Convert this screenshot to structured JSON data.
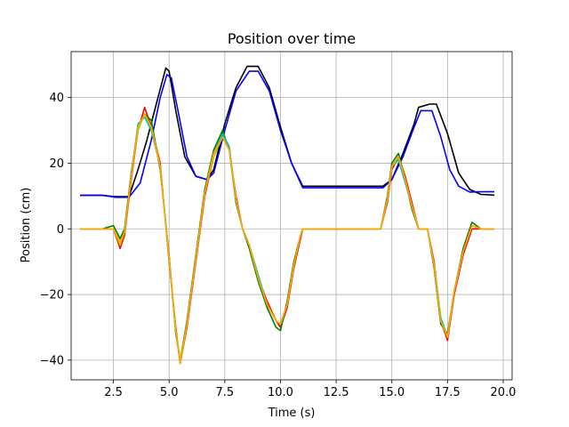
{
  "chart_data": {
    "type": "line",
    "title": "Position over time",
    "xlabel": "Time (s)",
    "ylabel": "Position (cm)",
    "xlim": [
      0.6,
      20.4
    ],
    "ylim": [
      -46,
      54
    ],
    "xticks": [
      2.5,
      5.0,
      7.5,
      10.0,
      12.5,
      15.0,
      17.5,
      20.0
    ],
    "xtick_labels": [
      "2.5",
      "5.0",
      "7.5",
      "10.0",
      "12.5",
      "15.0",
      "17.5",
      "20.0"
    ],
    "yticks": [
      -40,
      -20,
      0,
      20,
      40
    ],
    "ytick_labels": [
      "−40",
      "−20",
      "0",
      "20",
      "40"
    ],
    "grid": true,
    "colors": {
      "black": "#000000",
      "blue": "#0000ff",
      "red": "#ff0000",
      "green": "#008000",
      "cyan": "#00bfbf",
      "yellow": "#bfbf00",
      "orange": "#ffa500"
    },
    "series": [
      {
        "color": "#000000",
        "x": [
          1.0,
          2.0,
          2.6,
          3.2,
          3.6,
          4.0,
          4.5,
          4.85,
          5.0,
          5.3,
          5.7,
          6.2,
          6.7,
          7.0,
          7.5,
          8.0,
          8.5,
          9.0,
          9.5,
          10.0,
          10.5,
          11.0,
          12.0,
          13.0,
          14.0,
          14.6,
          15.0,
          15.5,
          16.0,
          16.2,
          16.7,
          17.0,
          17.5,
          18.0,
          18.5,
          19.0,
          19.6
        ],
        "y": [
          10.2,
          10.2,
          9.8,
          9.8,
          18,
          27,
          40,
          49,
          48,
          36,
          22,
          16,
          15,
          18,
          32,
          43,
          49.5,
          49.5,
          43,
          31,
          20,
          13,
          13,
          13,
          13,
          13,
          15,
          23,
          32,
          37,
          38,
          38,
          29,
          17,
          12,
          10.5,
          10.3
        ]
      },
      {
        "color": "#0000ff",
        "x": [
          1.0,
          2.0,
          2.6,
          3.2,
          3.7,
          4.2,
          4.6,
          4.9,
          5.1,
          5.4,
          5.8,
          6.2,
          6.7,
          7.0,
          7.5,
          8.0,
          8.6,
          9.0,
          9.5,
          10.0,
          10.5,
          11.0,
          12.0,
          13.0,
          14.0,
          14.6,
          15.0,
          15.5,
          16.0,
          16.3,
          16.8,
          17.2,
          17.6,
          18.0,
          18.5,
          19.0,
          19.6
        ],
        "y": [
          10.2,
          10.2,
          9.6,
          9.6,
          14,
          27,
          40,
          47,
          46,
          36,
          22,
          16,
          15,
          17,
          30,
          42,
          48,
          48,
          42,
          30,
          20,
          12.5,
          12.5,
          12.5,
          12.5,
          12.5,
          15,
          22,
          31,
          36,
          36,
          28,
          18,
          13,
          11.2,
          11.3,
          11.3
        ]
      },
      {
        "color": "#ff0000",
        "x": [
          1.0,
          2.0,
          2.5,
          2.8,
          3.0,
          3.3,
          3.6,
          3.9,
          4.2,
          4.6,
          5.0,
          5.3,
          5.5,
          5.8,
          6.2,
          6.6,
          7.0,
          7.4,
          7.7,
          8.0,
          8.3,
          8.6,
          9.0,
          9.4,
          9.8,
          10.0,
          10.3,
          10.6,
          10.9,
          11.0,
          12.0,
          13.0,
          14.0,
          14.5,
          14.8,
          15.0,
          15.3,
          15.6,
          15.9,
          16.2,
          16.6,
          16.9,
          17.2,
          17.5,
          17.8,
          18.2,
          18.6,
          19.0,
          19.6
        ],
        "y": [
          0,
          0,
          0,
          -6,
          -2,
          15,
          30,
          37,
          31,
          20,
          -10,
          -30,
          -41,
          -30,
          -10,
          10,
          22,
          28,
          24,
          10,
          0,
          -5,
          -15,
          -22,
          -28,
          -30,
          -24,
          -12,
          -3,
          0,
          0,
          0,
          0,
          0,
          8,
          18,
          22,
          16,
          8,
          0,
          0,
          -10,
          -28,
          -34,
          -20,
          -8,
          0,
          0,
          0
        ]
      },
      {
        "color": "#008000",
        "x": [
          1.0,
          2.0,
          2.5,
          2.8,
          3.0,
          3.3,
          3.6,
          3.9,
          4.2,
          4.6,
          5.0,
          5.3,
          5.5,
          5.8,
          6.2,
          6.6,
          7.0,
          7.4,
          7.7,
          8.0,
          8.3,
          8.6,
          9.0,
          9.4,
          9.8,
          10.0,
          10.3,
          10.6,
          10.9,
          11.0,
          12.0,
          13.0,
          14.0,
          14.5,
          14.8,
          15.0,
          15.3,
          15.6,
          15.9,
          16.2,
          16.6,
          16.9,
          17.2,
          17.5,
          17.8,
          18.2,
          18.6,
          19.0,
          19.6
        ],
        "y": [
          0,
          0,
          1,
          -3,
          0,
          17,
          31,
          35,
          33,
          18,
          -8,
          -32,
          -40,
          -28,
          -8,
          12,
          24,
          30,
          24,
          8,
          0,
          -6,
          -16,
          -24,
          -30,
          -31,
          -22,
          -10,
          -2,
          0,
          0,
          0,
          0,
          0,
          10,
          20,
          23,
          15,
          6,
          0,
          0,
          -12,
          -29,
          -32,
          -19,
          -6,
          2,
          0,
          0
        ]
      },
      {
        "color": "#00bfbf",
        "x": [
          1.0,
          2.0,
          2.5,
          2.8,
          3.0,
          3.3,
          3.6,
          3.9,
          4.2,
          4.6,
          5.0,
          5.3,
          5.5,
          5.8,
          6.2,
          6.6,
          7.0,
          7.4,
          7.7,
          8.0,
          8.3,
          8.6,
          9.0,
          9.4,
          9.8,
          10.0,
          10.3,
          10.6,
          10.9,
          11.0,
          12.0,
          13.0,
          14.0,
          14.5,
          14.8,
          15.0,
          15.3,
          15.6,
          15.9,
          16.2,
          16.6,
          16.9,
          17.2,
          17.5,
          17.8,
          18.2,
          18.6,
          19.0,
          19.6
        ],
        "y": [
          0,
          0,
          0,
          -4,
          -1,
          16,
          32,
          34,
          30,
          19,
          -9,
          -31,
          -41,
          -29,
          -9,
          11,
          23,
          29,
          25,
          9,
          0,
          -5,
          -14,
          -23,
          -28,
          -29,
          -23,
          -11,
          -2,
          0,
          0,
          0,
          0,
          0,
          9,
          19,
          21,
          14,
          7,
          0,
          0,
          -11,
          -27,
          -33,
          -19,
          -7,
          1,
          0,
          0
        ]
      },
      {
        "color": "#bfbf00",
        "x": [
          1.0,
          2.0,
          2.5,
          2.8,
          3.0,
          3.3,
          3.6,
          3.9,
          4.2,
          4.6,
          5.0,
          5.3,
          5.5,
          5.8,
          6.2,
          6.6,
          7.0,
          7.4,
          7.7,
          8.0,
          8.3,
          8.6,
          9.0,
          9.4,
          9.8,
          10.0,
          10.3,
          10.6,
          10.9,
          11.0,
          12.0,
          13.0,
          14.0,
          14.5,
          14.8,
          15.0,
          15.3,
          15.6,
          15.9,
          16.2,
          16.6,
          16.9,
          17.2,
          17.5,
          17.8,
          18.2,
          18.6,
          19.0,
          19.6
        ],
        "y": [
          0,
          0,
          0,
          -5,
          -1,
          16,
          30,
          35,
          31,
          19,
          -9,
          -31,
          -40,
          -29,
          -9,
          11,
          22,
          28,
          24,
          9,
          0,
          -5,
          -15,
          -23,
          -28,
          -29,
          -23,
          -11,
          -2,
          0,
          0,
          0,
          0,
          0,
          9,
          19,
          22,
          15,
          7,
          0,
          0,
          -11,
          -28,
          -33,
          -19,
          -7,
          1,
          0,
          0
        ]
      },
      {
        "color": "#ffa500",
        "x": [
          1.0,
          2.0,
          2.5,
          2.8,
          3.0,
          3.3,
          3.6,
          3.9,
          4.2,
          4.6,
          5.0,
          5.3,
          5.5,
          5.8,
          6.2,
          6.6,
          7.0,
          7.4,
          7.7,
          8.0,
          8.3,
          8.6,
          9.0,
          9.4,
          9.8,
          10.0,
          10.3,
          10.6,
          10.9,
          11.0,
          12.0,
          13.0,
          14.0,
          14.5,
          14.8,
          15.0,
          15.3,
          15.6,
          15.9,
          16.2,
          16.6,
          16.9,
          17.2,
          17.5,
          17.8,
          18.2,
          18.6,
          19.0,
          19.6
        ],
        "y": [
          0,
          0,
          0,
          -4,
          -1,
          16,
          31,
          35,
          31,
          19,
          -9,
          -31,
          -41,
          -29,
          -9,
          11,
          23,
          28,
          24,
          9,
          0,
          -5,
          -15,
          -23,
          -28,
          -29,
          -23,
          -11,
          -2,
          0,
          0,
          0,
          0,
          0,
          9,
          19,
          22,
          15,
          7,
          0,
          0,
          -11,
          -28,
          -33,
          -19,
          -7,
          1,
          0,
          0
        ]
      }
    ]
  }
}
